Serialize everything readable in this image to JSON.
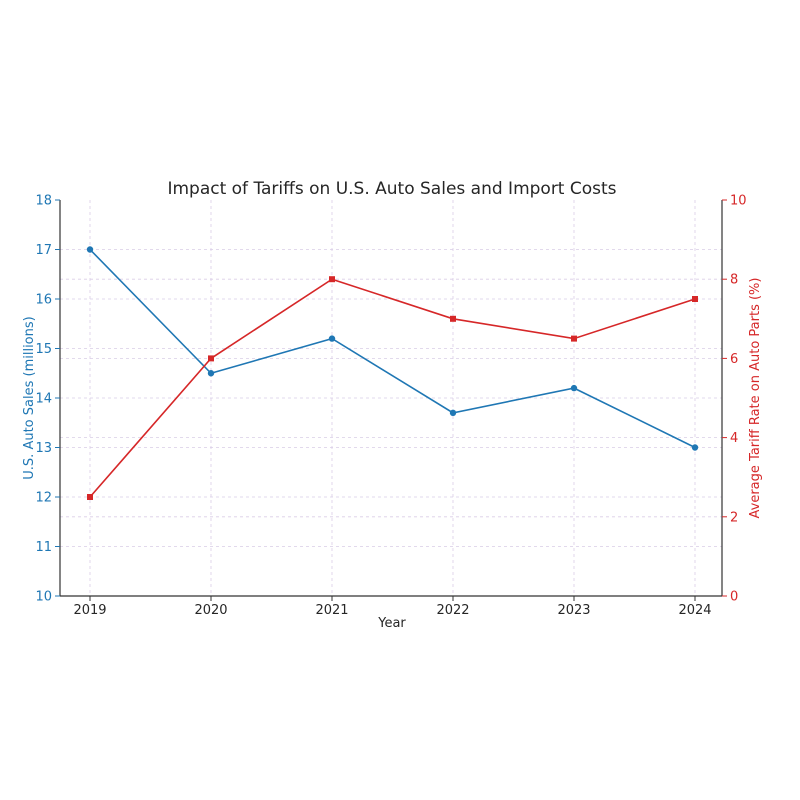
{
  "chart_data": {
    "type": "line",
    "title": "Impact of Tariffs on U.S. Auto Sales and Import Costs",
    "xlabel": "Year",
    "ylabel_left": "U.S. Auto Sales (millions)",
    "ylabel_right": "Average Tariff Rate on Auto Parts (%)",
    "categories": [
      "2019",
      "2020",
      "2021",
      "2022",
      "2023",
      "2024"
    ],
    "y_left_lim": [
      10,
      18
    ],
    "y_left_ticks": [
      10,
      11,
      12,
      13,
      14,
      15,
      16,
      17,
      18
    ],
    "y_right_lim": [
      0,
      10
    ],
    "y_right_ticks": [
      0,
      2,
      4,
      6,
      8,
      10
    ],
    "grid": true,
    "series": [
      {
        "axis": "left",
        "color": "#1f77b4",
        "marker": "circle",
        "values": [
          17.0,
          14.5,
          15.2,
          13.7,
          14.2,
          13.0
        ]
      },
      {
        "axis": "right",
        "color": "#d62728",
        "marker": "square",
        "values": [
          2.5,
          6.0,
          8.0,
          7.0,
          6.5,
          7.5
        ]
      }
    ]
  }
}
